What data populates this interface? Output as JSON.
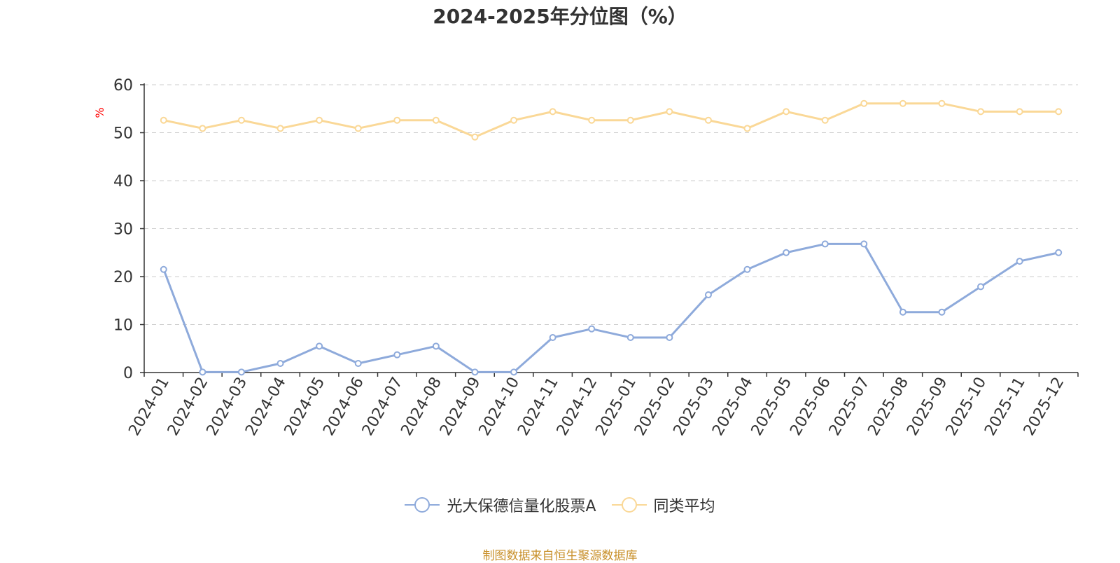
{
  "title": "2024-2025年分位图（%）",
  "source": "制图数据来自恒生聚源数据库",
  "colors": {
    "fund": "#8eaadb",
    "avg": "#fad897",
    "axis": "#333333",
    "grid": "#cccccc",
    "unit": "#ff0000",
    "source": "#c8902a"
  },
  "chart_data": {
    "type": "line",
    "ylabel": "%",
    "ylim": [
      0,
      60
    ],
    "yticks": [
      0,
      10,
      20,
      30,
      40,
      50,
      60
    ],
    "grid": true,
    "legend_position": "bottom",
    "categories": [
      "2024-01",
      "2024-02",
      "2024-03",
      "2024-04",
      "2024-05",
      "2024-06",
      "2024-07",
      "2024-08",
      "2024-09",
      "2024-10",
      "2024-11",
      "2024-12",
      "2025-01",
      "2025-02",
      "2025-03",
      "2025-04",
      "2025-05",
      "2025-06",
      "2025-07",
      "2025-08",
      "2025-09",
      "2025-10",
      "2025-11",
      "2025-12"
    ],
    "series": [
      {
        "name": "光大保德信量化股票A",
        "color": "#8eaadb",
        "values": [
          21.5,
          0.1,
          0.1,
          1.9,
          5.5,
          1.9,
          3.7,
          5.5,
          0.1,
          0.1,
          7.3,
          9.1,
          7.3,
          7.3,
          16.2,
          21.5,
          25.0,
          26.8,
          26.8,
          12.6,
          12.6,
          17.9,
          23.2,
          25.0
        ]
      },
      {
        "name": "同类平均",
        "color": "#fad897",
        "values": [
          52.6,
          50.9,
          52.6,
          50.9,
          52.6,
          50.9,
          52.6,
          52.6,
          49.1,
          52.6,
          54.4,
          52.6,
          52.6,
          54.4,
          52.6,
          50.9,
          54.4,
          52.6,
          56.1,
          56.1,
          56.1,
          54.4,
          54.4,
          54.4
        ]
      }
    ]
  }
}
